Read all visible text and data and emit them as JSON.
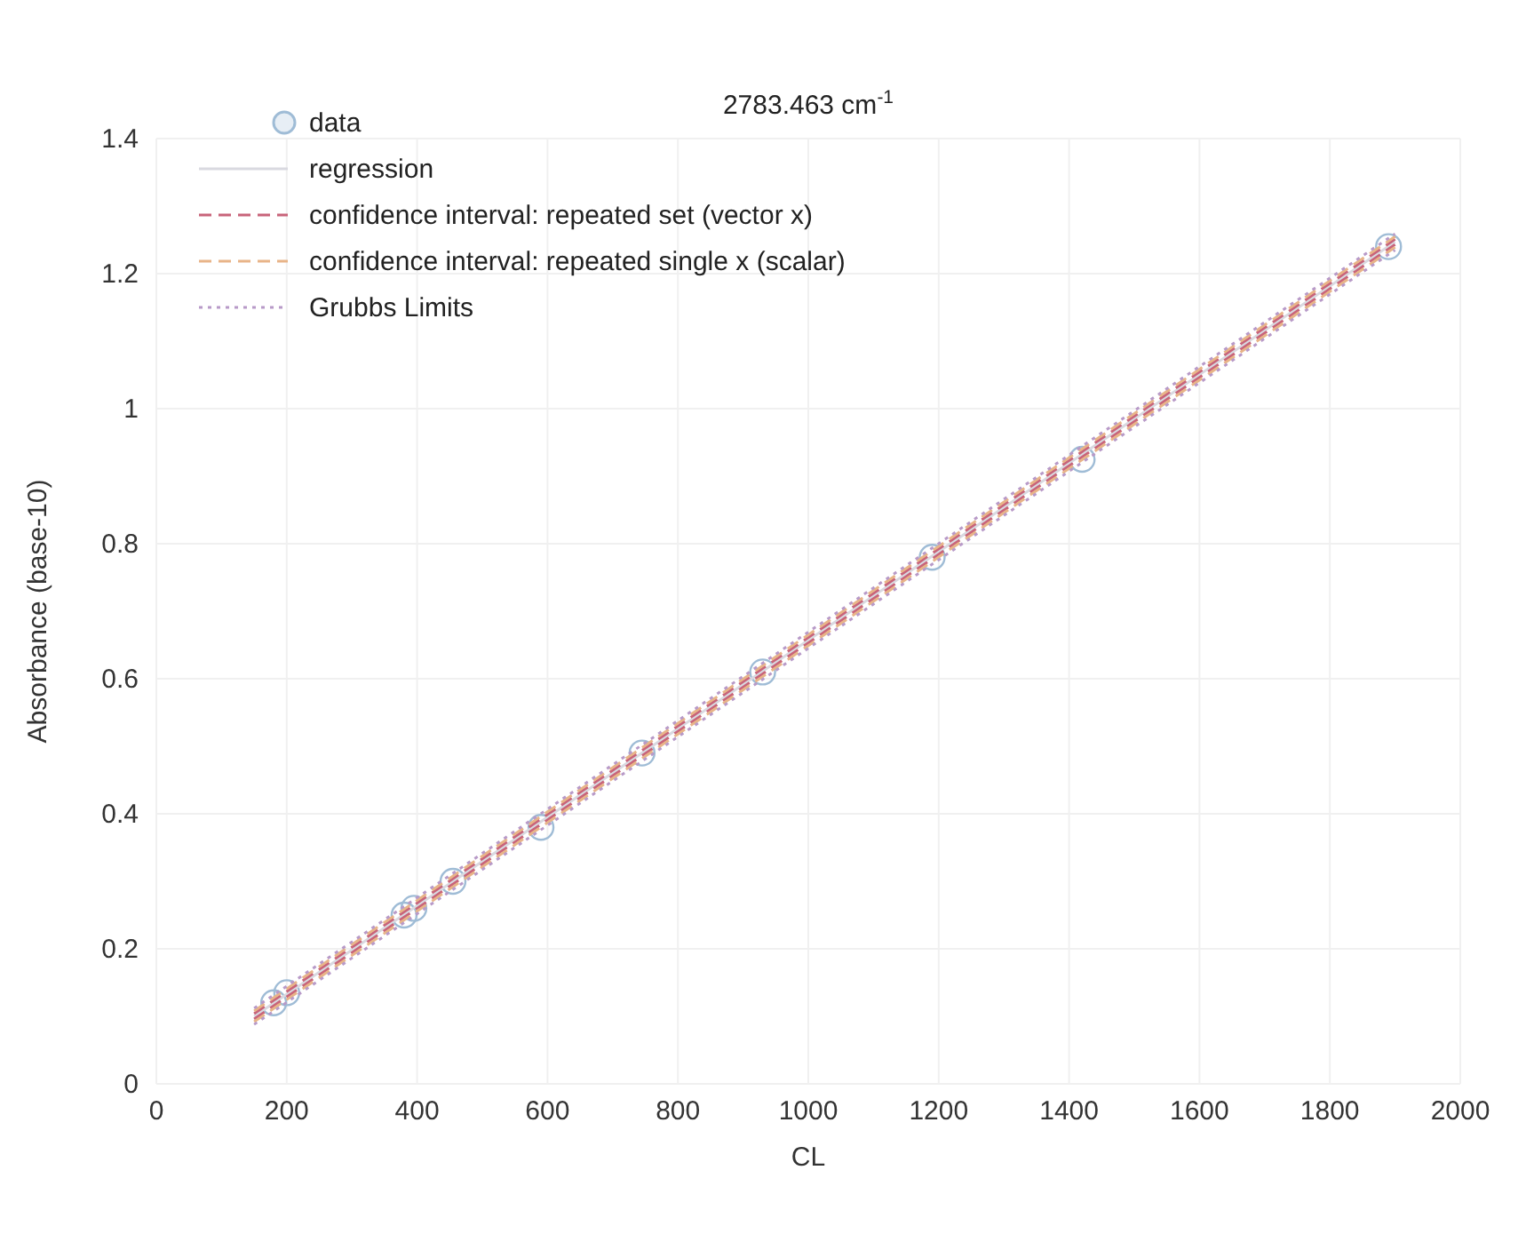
{
  "chart_data": {
    "type": "scatter",
    "title": "2783.463 cm$^{-1}$",
    "xlabel": "CL",
    "ylabel": "Absorbance (base-10)",
    "xlim": [
      0,
      2000
    ],
    "xticks": [
      0,
      200,
      400,
      600,
      800,
      1000,
      1200,
      1400,
      1600,
      1800,
      2000
    ],
    "ylim": [
      0,
      1.4
    ],
    "yticks": [
      0,
      0.2,
      0.4,
      0.6,
      0.8,
      1,
      1.2,
      1.4
    ],
    "grid": true,
    "legend": "top left",
    "series": [
      {
        "name": "data",
        "marker": "circle",
        "color": "#9fbcd6",
        "x": [
          180,
          200,
          380,
          395,
          455,
          590,
          745,
          930,
          1190,
          1420,
          1890
        ],
        "values": [
          0.12,
          0.135,
          0.25,
          0.26,
          0.3,
          0.38,
          0.49,
          0.61,
          0.78,
          0.925,
          1.24
        ]
      },
      {
        "name": "regression",
        "type": "line",
        "line_style": "solid",
        "color": "#d9d9e0",
        "x": [
          150,
          1900
        ],
        "values": [
          0.1,
          1.247
        ]
      },
      {
        "name": "confidence interval: repeated set (vector x)",
        "type": "line",
        "line_style": "dashed",
        "color": "#c8647a",
        "x": [
          150,
          1900
        ],
        "values": [
          0.104,
          1.251
        ]
      },
      {
        "type": "line",
        "line_style": "dashed",
        "color": "#c8647a",
        "x": [
          150,
          1900
        ],
        "values": [
          0.096,
          1.243
        ]
      },
      {
        "name": "confidence interval: repeated single x (scalar)",
        "type": "line",
        "line_style": "dashed",
        "color": "#e8b488",
        "x": [
          150,
          1900
        ],
        "values": [
          0.108,
          1.255
        ]
      },
      {
        "type": "line",
        "line_style": "dashed",
        "color": "#e8b488",
        "x": [
          150,
          1900
        ],
        "values": [
          0.092,
          1.239
        ]
      },
      {
        "name": "Grubbs Limits",
        "type": "line",
        "line_style": "dotted",
        "color": "#b89ac8",
        "x": [
          150,
          1900
        ],
        "values": [
          0.112,
          1.259
        ]
      },
      {
        "type": "line",
        "line_style": "dotted",
        "color": "#b89ac8",
        "x": [
          150,
          1900
        ],
        "values": [
          0.088,
          1.235
        ]
      }
    ]
  }
}
